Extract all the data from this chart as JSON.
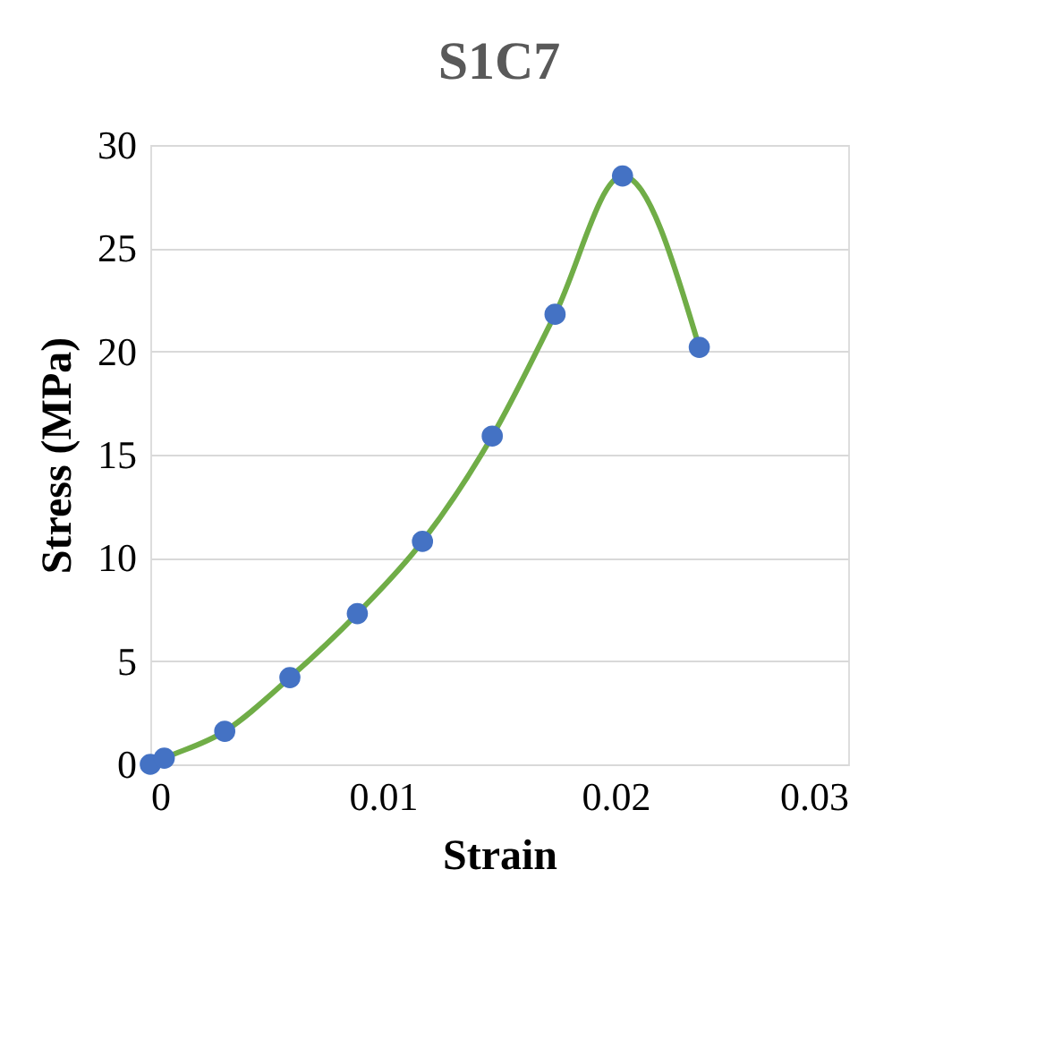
{
  "chart_data": {
    "type": "scatter",
    "title": "S1C7",
    "xlabel": "Strain",
    "ylabel": "Stress (MPa)",
    "x": [
      0,
      0.0006,
      0.0032,
      0.006,
      0.0089,
      0.0117,
      0.0147,
      0.0174,
      0.0203,
      0.0236
    ],
    "series": [
      {
        "type": "line",
        "color": "#70ad47",
        "values": [
          0,
          0.3,
          1.6,
          4.2,
          7.3,
          10.8,
          15.9,
          21.8,
          28.5,
          20.2
        ]
      },
      {
        "color": "#4472c4",
        "marker": "circle",
        "values": [
          0,
          0.3,
          1.6,
          4.2,
          7.3,
          10.8,
          15.9,
          21.8,
          28.5,
          20.2
        ]
      }
    ],
    "xlim": [
      0,
      0.03
    ],
    "xticks": [
      0,
      {
        "value": 0.01,
        "label": "0.01"
      },
      {
        "value": 0.02,
        "label": "0.02"
      },
      {
        "value": 0.03,
        "label": "0.03"
      }
    ],
    "ylim": [
      0,
      30
    ],
    "yticks": [
      0,
      5,
      10,
      15,
      20,
      25,
      30
    ],
    "grid": "y"
  }
}
